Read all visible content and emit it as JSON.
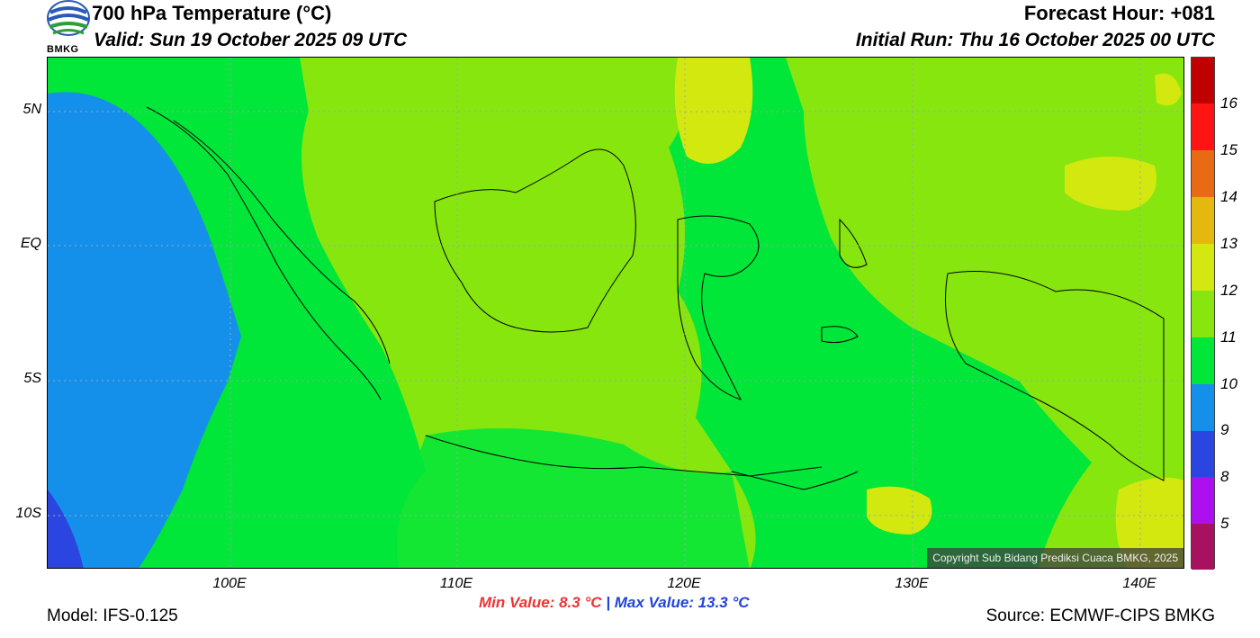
{
  "header": {
    "title": "700 hPa Temperature (°C)",
    "valid": "Valid: Sun 19 October 2025 09 UTC",
    "forecast_hour": "Forecast Hour: +081",
    "initial_run": "Initial Run: Thu 16 October 2025 00 UTC"
  },
  "logo": {
    "text": "BMKG",
    "icon": "bmkg-logo-icon"
  },
  "axes": {
    "lat_labels": [
      "5N",
      "EQ",
      "5S",
      "10S"
    ],
    "lon_labels": [
      "100E",
      "110E",
      "120E",
      "130E",
      "140E"
    ]
  },
  "colorbar": {
    "ticks": [
      "16",
      "15",
      "14",
      "13",
      "12",
      "11",
      "10",
      "9",
      "8",
      "5"
    ],
    "colors": [
      "#c00000",
      "#ff1414",
      "#e86a12",
      "#e4b80c",
      "#d2e80e",
      "#86e60e",
      "#00e639",
      "#1590ea",
      "#2a45e0",
      "#ad10ee",
      "#a81060"
    ]
  },
  "footer": {
    "model": "Model: IFS-0.125",
    "min_value": "Min Value: 8.3 °C",
    "separator": "|",
    "max_value": "Max Value: 13.3 °C",
    "source": "Source: ECMWF-CIPS BMKG",
    "copyright": "Copyright Sub Bidang Prediksi Cuaca BMKG, 2025"
  }
}
